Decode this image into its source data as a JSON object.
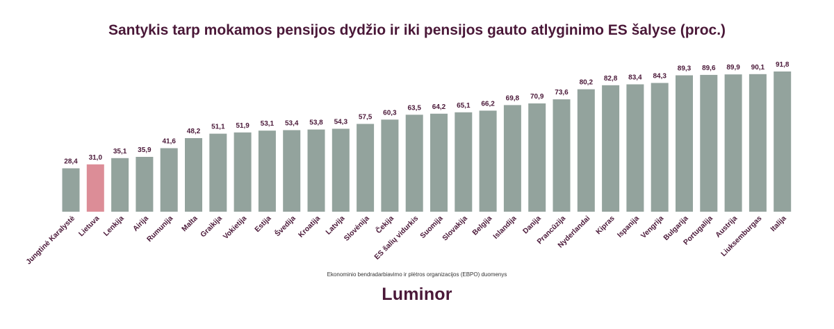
{
  "chart_data": {
    "type": "bar",
    "title": "Santykis tarp mokamos pensijos dydžio ir iki pensijos gauto atlyginimo ES šalyse (proc.)",
    "categories": [
      "Jungtinė Karalystė",
      "Lietuva",
      "Lenkija",
      "Airija",
      "Rumunija",
      "Malta",
      "Graikija",
      "Vokietija",
      "Estija",
      "Švedija",
      "Kroatija",
      "Latvija",
      "Slovėnija",
      "Čekija",
      "ES šalių vidurkis",
      "Suomija",
      "Slovakija",
      "Belgija",
      "Islandija",
      "Danija",
      "Prancūzija",
      "Nyderlandai",
      "Kipras",
      "Ispanija",
      "Vengrija",
      "Bulgarija",
      "Portugalija",
      "Austrija",
      "Liuksemburgas",
      "Italija"
    ],
    "values": [
      28.4,
      31.0,
      35.1,
      35.9,
      41.6,
      48.2,
      51.1,
      51.9,
      53.1,
      53.4,
      53.8,
      54.3,
      57.5,
      60.3,
      63.5,
      64.2,
      65.1,
      66.2,
      69.8,
      70.9,
      73.6,
      80.2,
      82.8,
      83.4,
      84.3,
      89.3,
      89.6,
      89.9,
      90.1,
      91.8
    ],
    "value_labels": [
      "28,4",
      "31,0",
      "35,1",
      "35,9",
      "41,6",
      "48,2",
      "51,1",
      "51,9",
      "53,1",
      "53,4",
      "53,8",
      "54,3",
      "57,5",
      "60,3",
      "63,5",
      "64,2",
      "65,1",
      "66,2",
      "69,8",
      "70,9",
      "73,6",
      "80,2",
      "82,8",
      "83,4",
      "84,3",
      "89,3",
      "89,6",
      "89,9",
      "90,1",
      "91,8"
    ],
    "highlight": "Lietuva",
    "xlabel": "",
    "ylabel": "",
    "ylim": [
      0,
      100
    ],
    "grid": false,
    "colors": {
      "bar": "#93a39d",
      "highlight": "#dc8d97",
      "text": "#4a1838"
    }
  },
  "source_note": "Ekonominio bendradarbiavimo ir plėtros organizacijos (EBPO) duomenys",
  "brand": "Luminor"
}
